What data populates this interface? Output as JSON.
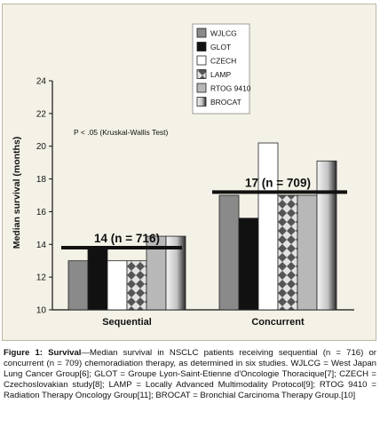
{
  "chart_data": {
    "type": "bar",
    "categories": [
      "Sequential",
      "Concurrent"
    ],
    "ylabel": "Median survival (months)",
    "ylim": [
      10,
      24
    ],
    "yticks": [
      10,
      12,
      14,
      16,
      18,
      20,
      22,
      24
    ],
    "grid": false,
    "legend_position": "top-center",
    "annotation": "P < .05 (Kruskal-Wallis Test)",
    "series": [
      {
        "name": "WJLCG",
        "fill": "#8a8a8a",
        "pattern": "solid",
        "values": [
          13.0,
          17.0
        ]
      },
      {
        "name": "GLOT",
        "fill": "#111111",
        "pattern": "solid",
        "values": [
          13.7,
          15.6
        ]
      },
      {
        "name": "CZECH",
        "fill": "#ffffff",
        "pattern": "solid",
        "values": [
          13.0,
          20.2
        ]
      },
      {
        "name": "LAMP",
        "fill": "#6b6b6b",
        "pattern": "checker",
        "values": [
          13.0,
          17.0
        ]
      },
      {
        "name": "RTOG 9410",
        "fill": "#b8b8b8",
        "pattern": "solid",
        "values": [
          14.5,
          17.0
        ]
      },
      {
        "name": "BROCAT",
        "fill": "#d9d9d9",
        "pattern": "gradient",
        "values": [
          14.5,
          19.1
        ]
      }
    ],
    "pooled_lines": [
      {
        "label": "14 (n = 716)",
        "value": 13.8,
        "category": "Sequential"
      },
      {
        "label": "17 (n = 709)",
        "value": 17.2,
        "category": "Concurrent"
      }
    ]
  },
  "caption": {
    "label": "Figure 1:",
    "title": " Survival",
    "text": "—Median survival in NSCLC patients receiving sequential (n = 716) or concurrent (n = 709) chemoradiation therapy, as determined in six studies. WJLCG = West Japan Lung Cancer Group[6]; GLOT = Groupe Lyon-Saint-Etienne d'Oncologie Thoracique[7]; CZECH = Czechoslovakian study[8]; LAMP = Locally Advanced Multimodality Protocol[9]; RTOG 9410 = Radiation Therapy Oncology Group[11]; BROCAT = Bronchial Carcinoma Therapy Group.[10]"
  }
}
